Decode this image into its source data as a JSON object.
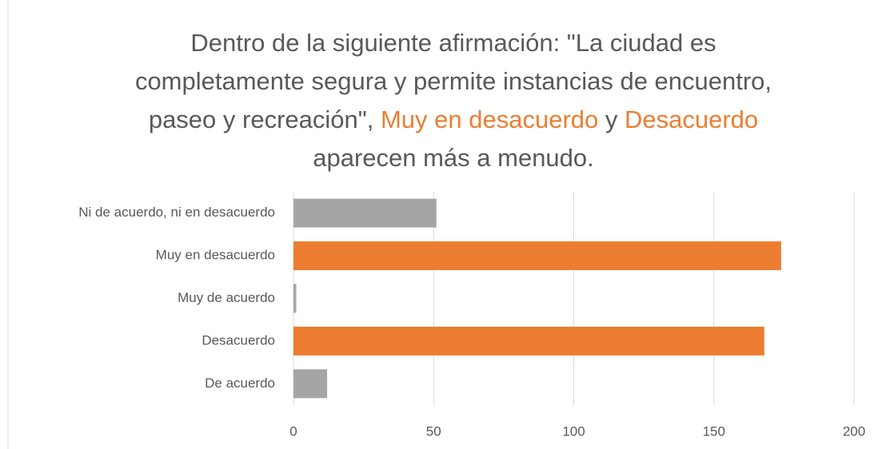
{
  "chart_data": {
    "type": "bar",
    "orientation": "horizontal",
    "title_segments": [
      {
        "text": "Dentro de la siguiente afirmación: \"La ciudad es completamente segura y permite instancias de encuentro, paseo y recreación\", ",
        "highlight": false
      },
      {
        "text": "Muy en desacuerdo",
        "highlight": true
      },
      {
        "text": " y ",
        "highlight": false
      },
      {
        "text": "Desacuerdo",
        "highlight": true
      },
      {
        "text": " aparecen más a menudo.",
        "highlight": false
      }
    ],
    "highlight_color": "#ed7d31",
    "categories": [
      "Ni de acuerdo, ni en desacuerdo",
      "Muy en desacuerdo",
      "Muy de acuerdo",
      "Desacuerdo",
      "De acuerdo"
    ],
    "values": [
      51,
      174,
      1,
      168,
      12
    ],
    "colors": [
      "#a5a5a5",
      "#ed7d31",
      "#a5a5a5",
      "#ed7d31",
      "#a5a5a5"
    ],
    "xlim": [
      0,
      200
    ],
    "xticks": [
      0,
      50,
      100,
      150,
      200
    ],
    "grid": true
  }
}
